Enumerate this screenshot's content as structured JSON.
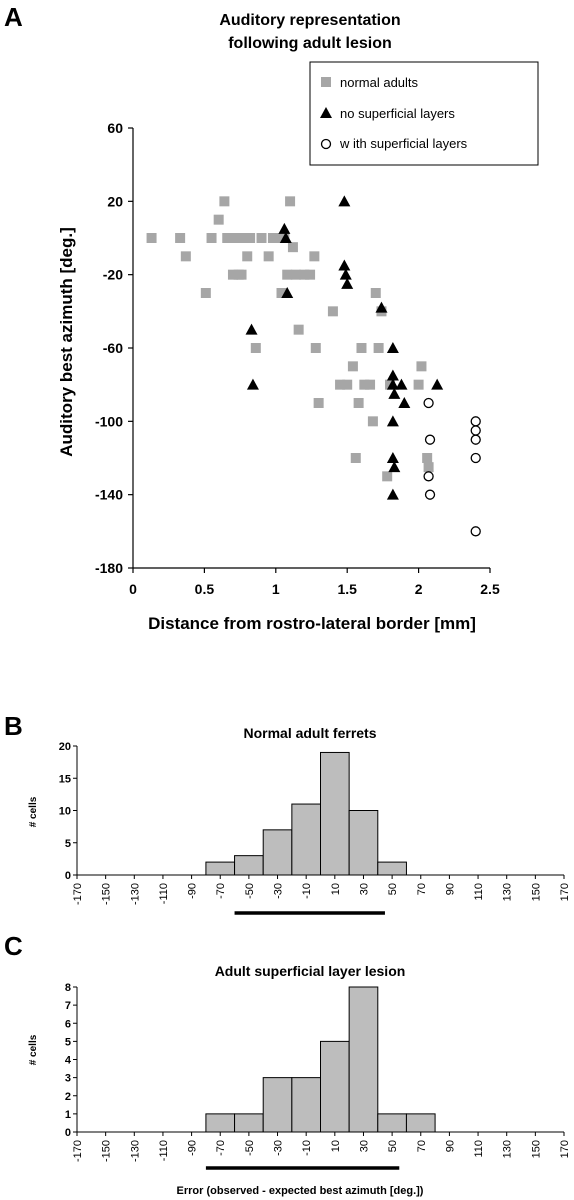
{
  "panels": {
    "a": "A",
    "b": "B",
    "c": "C"
  },
  "chart_data": [
    {
      "type": "scatter",
      "title_lines": [
        "Auditory representation",
        "following adult lesion"
      ],
      "xlabel": "Distance from rostro-lateral border [mm]",
      "ylabel": "Auditory best azimuth [deg.]",
      "xlim": [
        0,
        2.5
      ],
      "ylim": [
        -180,
        60
      ],
      "xticks": [
        0,
        0.5,
        1,
        1.5,
        2,
        2.5
      ],
      "yticks": [
        60,
        20,
        -20,
        -60,
        -100,
        -140,
        -180
      ],
      "legend_position": "top-right",
      "series": [
        {
          "name": "normal adults",
          "marker": "square",
          "color": "#a6a6a6",
          "points": [
            [
              0.13,
              0
            ],
            [
              0.33,
              0
            ],
            [
              0.37,
              -10
            ],
            [
              0.51,
              -30
            ],
            [
              0.55,
              0
            ],
            [
              0.6,
              10
            ],
            [
              0.64,
              20
            ],
            [
              0.66,
              0
            ],
            [
              0.68,
              0
            ],
            [
              0.7,
              -20
            ],
            [
              0.72,
              0
            ],
            [
              0.74,
              -20
            ],
            [
              0.76,
              -20
            ],
            [
              0.78,
              0
            ],
            [
              0.8,
              -10
            ],
            [
              0.82,
              0
            ],
            [
              0.86,
              -60
            ],
            [
              0.9,
              0
            ],
            [
              0.95,
              -10
            ],
            [
              0.98,
              0
            ],
            [
              1.02,
              0
            ],
            [
              1.04,
              -30
            ],
            [
              1.06,
              0
            ],
            [
              1.08,
              -20
            ],
            [
              1.1,
              20
            ],
            [
              1.12,
              -5
            ],
            [
              1.14,
              -20
            ],
            [
              1.16,
              -50
            ],
            [
              1.2,
              -20
            ],
            [
              1.24,
              -20
            ],
            [
              1.27,
              -10
            ],
            [
              1.28,
              -60
            ],
            [
              1.3,
              -90
            ],
            [
              1.4,
              -40
            ],
            [
              1.45,
              -80
            ],
            [
              1.5,
              -80
            ],
            [
              1.54,
              -70
            ],
            [
              1.56,
              -120
            ],
            [
              1.58,
              -90
            ],
            [
              1.6,
              -60
            ],
            [
              1.62,
              -80
            ],
            [
              1.66,
              -80
            ],
            [
              1.68,
              -100
            ],
            [
              1.7,
              -30
            ],
            [
              1.72,
              -60
            ],
            [
              1.74,
              -40
            ],
            [
              1.78,
              -130
            ],
            [
              1.8,
              -80
            ],
            [
              2.0,
              -80
            ],
            [
              2.02,
              -70
            ],
            [
              2.06,
              -120
            ],
            [
              2.07,
              -125
            ]
          ],
          "values_approx": true
        },
        {
          "name": "no superficial layers",
          "marker": "triangle",
          "color": "#000000",
          "points": [
            [
              0.83,
              -50
            ],
            [
              0.84,
              -80
            ],
            [
              1.06,
              5
            ],
            [
              1.07,
              0
            ],
            [
              1.08,
              -30
            ],
            [
              1.48,
              20
            ],
            [
              1.48,
              -15
            ],
            [
              1.49,
              -20
            ],
            [
              1.5,
              -25
            ],
            [
              1.74,
              -38
            ],
            [
              1.82,
              -60
            ],
            [
              1.82,
              -75
            ],
            [
              1.82,
              -80
            ],
            [
              1.83,
              -85
            ],
            [
              1.82,
              -100
            ],
            [
              1.82,
              -120
            ],
            [
              1.83,
              -125
            ],
            [
              1.82,
              -140
            ],
            [
              1.88,
              -80
            ],
            [
              1.9,
              -90
            ],
            [
              2.13,
              -80
            ]
          ],
          "values_approx": true
        },
        {
          "name": "w ith superficial layers",
          "marker": "open-circle",
          "color": "#000000",
          "points": [
            [
              2.07,
              -90
            ],
            [
              2.08,
              -110
            ],
            [
              2.07,
              -130
            ],
            [
              2.08,
              -140
            ],
            [
              2.4,
              -100
            ],
            [
              2.4,
              -105
            ],
            [
              2.4,
              -110
            ],
            [
              2.4,
              -120
            ],
            [
              2.4,
              -160
            ]
          ],
          "values_approx": true
        }
      ]
    },
    {
      "type": "bar",
      "title": "Normal adult ferrets",
      "ylabel": "# cells",
      "xlabel": "",
      "ylim": [
        0,
        20
      ],
      "yticks": [
        0,
        5,
        10,
        15,
        20
      ],
      "xlim": [
        -170,
        170
      ],
      "xticks": [
        -170,
        -150,
        -130,
        -110,
        -90,
        -70,
        -50,
        -30,
        -10,
        10,
        30,
        50,
        70,
        90,
        110,
        130,
        150,
        170
      ],
      "bins": [
        {
          "x0": -80,
          "x1": -60,
          "count": 2
        },
        {
          "x0": -60,
          "x1": -40,
          "count": 3
        },
        {
          "x0": -40,
          "x1": -20,
          "count": 7
        },
        {
          "x0": -20,
          "x1": 0,
          "count": 11
        },
        {
          "x0": 0,
          "x1": 20,
          "count": 19
        },
        {
          "x0": 20,
          "x1": 40,
          "count": 10
        },
        {
          "x0": 40,
          "x1": 60,
          "count": 2
        }
      ],
      "range_bar": [
        -60,
        45
      ]
    },
    {
      "type": "bar",
      "title": "Adult superficial layer lesion",
      "ylabel": "# cells",
      "xlabel": "Error (observed - expected best azimuth [deg.])",
      "ylim": [
        0,
        8
      ],
      "yticks": [
        0,
        1,
        2,
        3,
        4,
        5,
        6,
        7,
        8
      ],
      "xlim": [
        -170,
        170
      ],
      "xticks": [
        -170,
        -150,
        -130,
        -110,
        -90,
        -70,
        -50,
        -30,
        -10,
        10,
        30,
        50,
        70,
        90,
        110,
        130,
        150,
        170
      ],
      "bins": [
        {
          "x0": -80,
          "x1": -60,
          "count": 1
        },
        {
          "x0": -60,
          "x1": -40,
          "count": 1
        },
        {
          "x0": -40,
          "x1": -20,
          "count": 3
        },
        {
          "x0": -20,
          "x1": 0,
          "count": 3
        },
        {
          "x0": 0,
          "x1": 20,
          "count": 5
        },
        {
          "x0": 20,
          "x1": 40,
          "count": 8
        },
        {
          "x0": 40,
          "x1": 60,
          "count": 1
        },
        {
          "x0": 60,
          "x1": 80,
          "count": 1
        }
      ],
      "range_bar": [
        -80,
        55
      ]
    }
  ]
}
